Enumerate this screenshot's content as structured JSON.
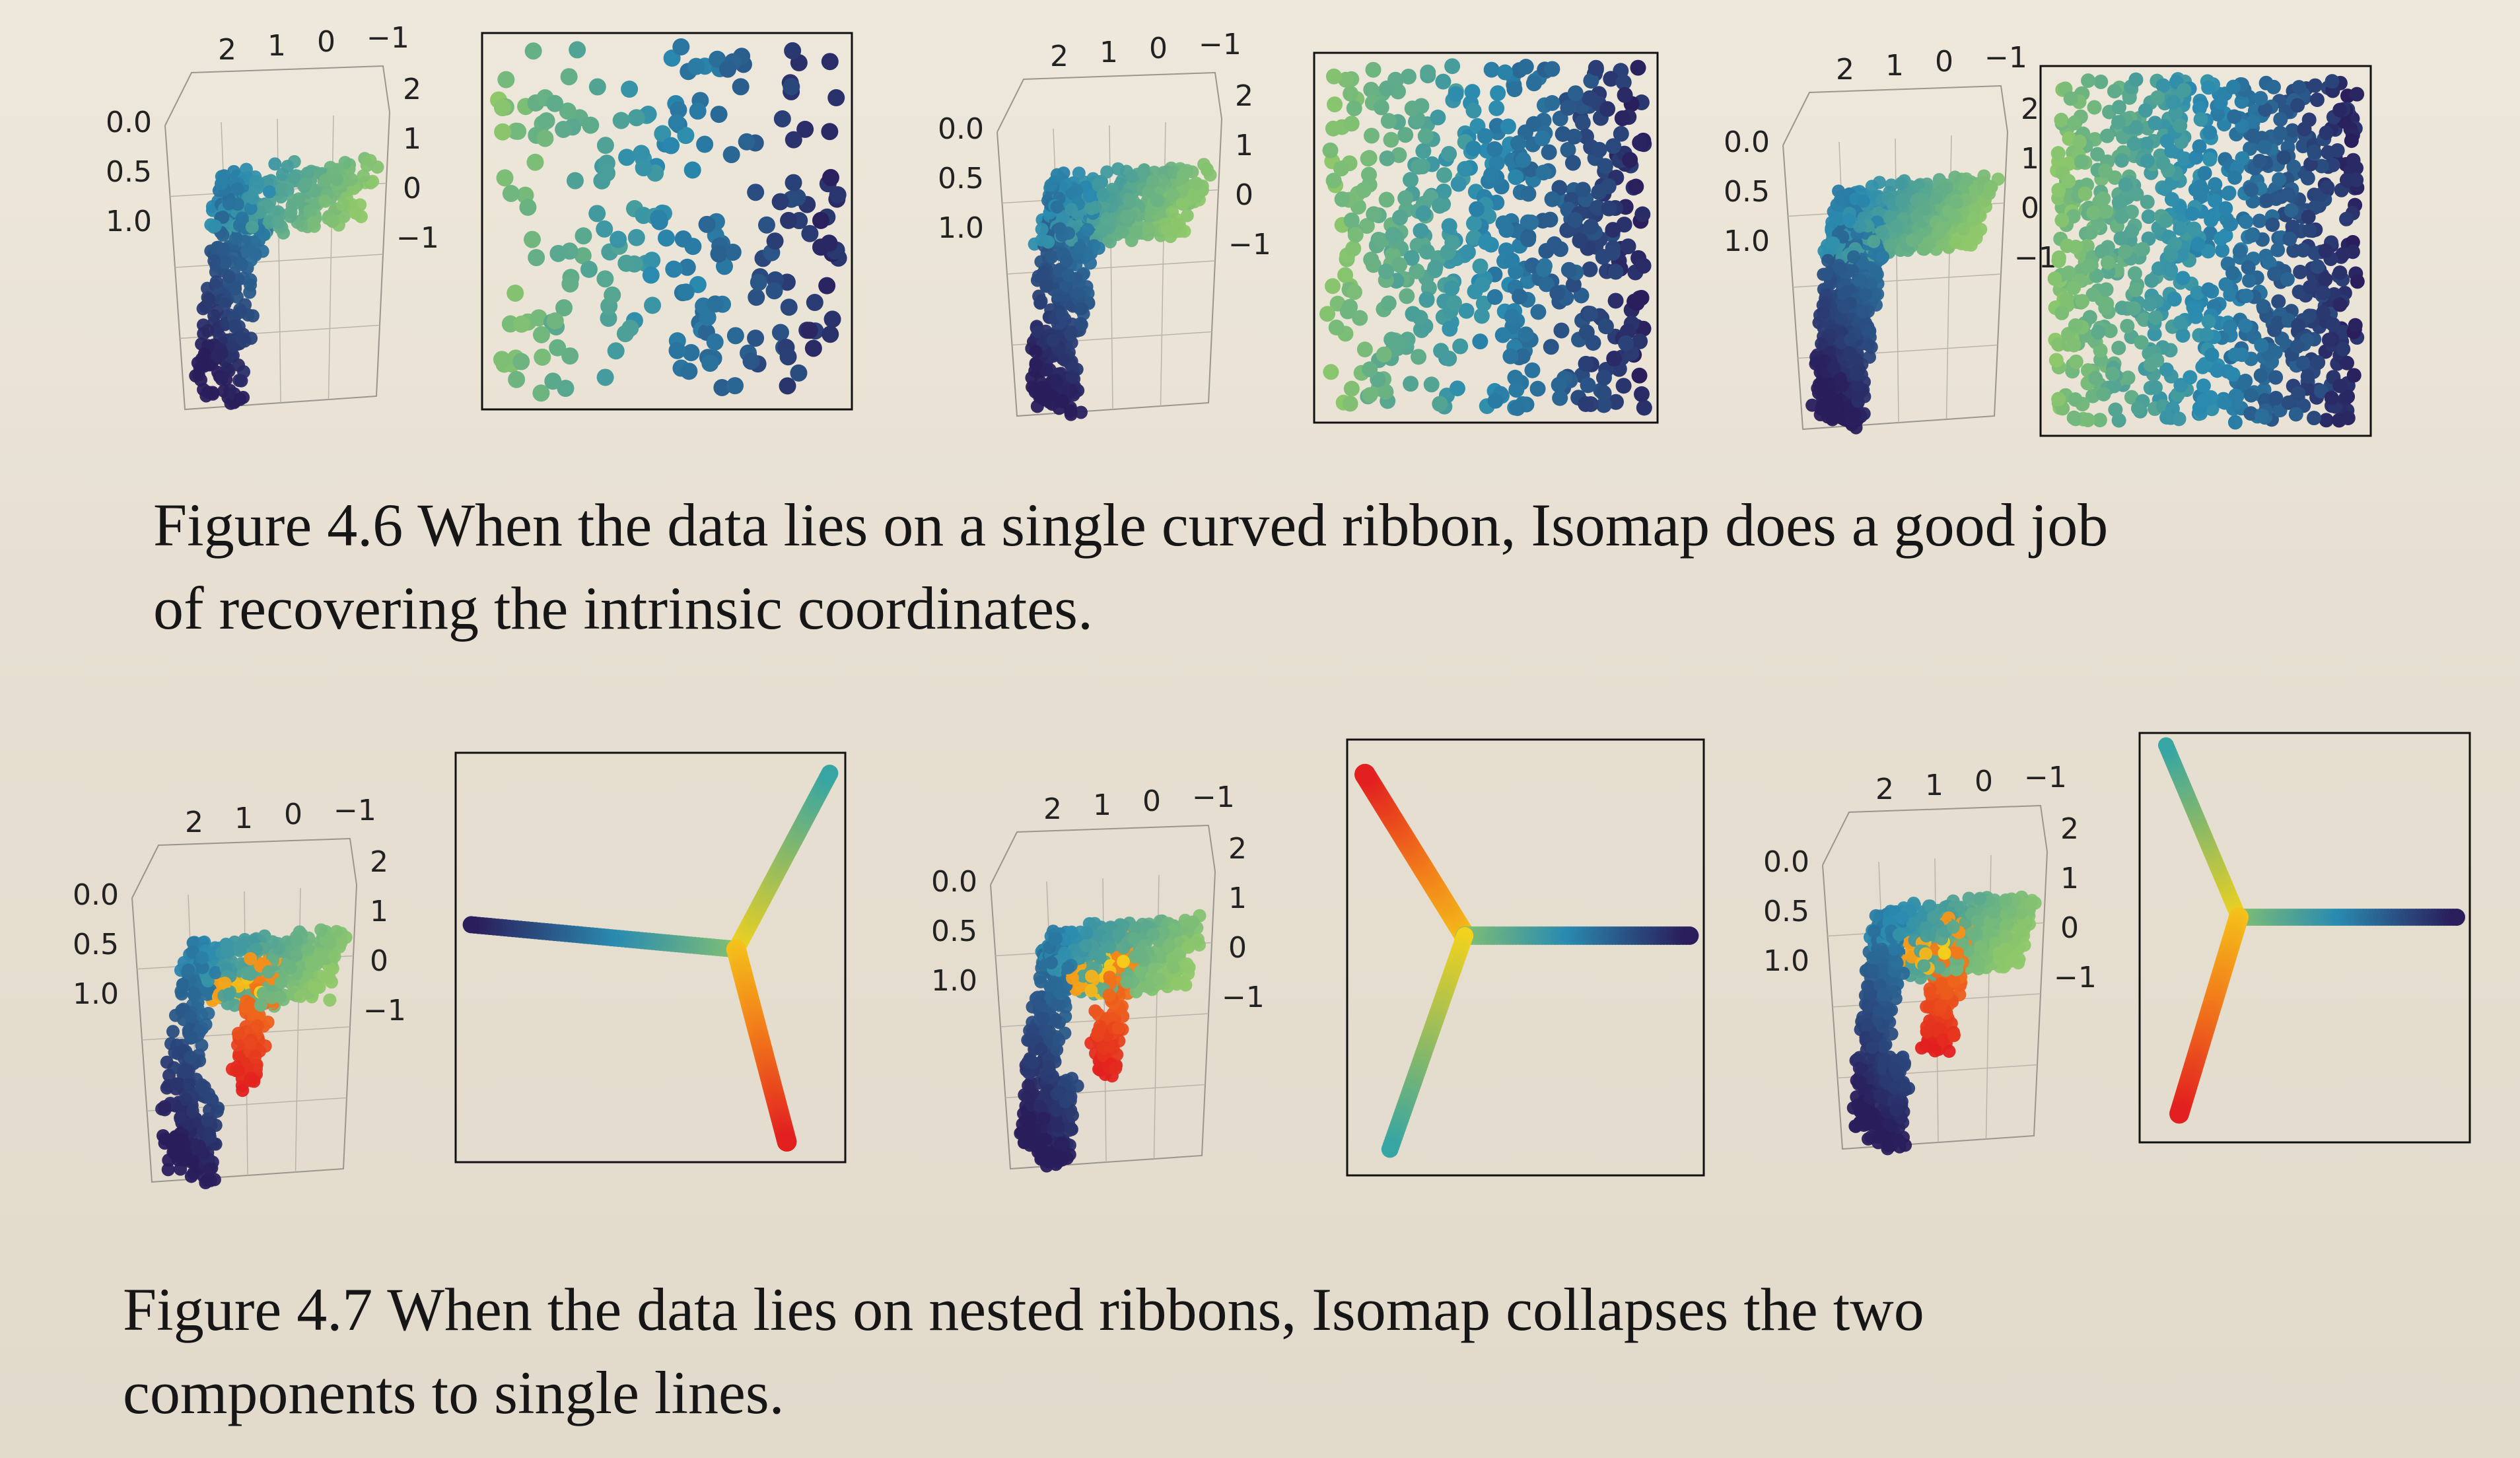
{
  "figure_4_6": {
    "caption": {
      "number": "Figure 4.6",
      "line1": "When the data lies on a single curved ribbon, Isomap does a good job",
      "line2": "of recovering the intrinsic coordinates."
    }
  },
  "figure_4_7": {
    "caption": {
      "number": "Figure 4.7",
      "line1": "When the data lies on nested ribbons, Isomap collapses the two",
      "line2": "components to single lines."
    }
  },
  "axis_3d": {
    "top_ticks": [
      "2",
      "1",
      "0",
      "−1"
    ],
    "left_ticks": [
      "0.0",
      "0.5",
      "1.0"
    ],
    "right_ticks": [
      "2",
      "1",
      "0",
      "−1"
    ]
  },
  "colors": {
    "viridis_dark": "#2a1e5c",
    "viridis_mid": "#2a8bb0",
    "viridis_light": "#8ec86a",
    "red": "#e22020",
    "orange": "#f27d1a",
    "yellow": "#f5d31a",
    "teal": "#37a5a3"
  },
  "chart_data": [
    {
      "type": "scatter",
      "figure": "4.6",
      "panel": 1,
      "view": "3d-ribbon",
      "xlabel": "",
      "ylabel": ""
    },
    {
      "type": "scatter",
      "figure": "4.6",
      "panel": 2,
      "view": "2d-embedding-sparse",
      "xlabel": "",
      "ylabel": ""
    },
    {
      "type": "scatter",
      "figure": "4.6",
      "panel": 3,
      "view": "3d-ribbon",
      "xlabel": "",
      "ylabel": ""
    },
    {
      "type": "scatter",
      "figure": "4.6",
      "panel": 4,
      "view": "2d-embedding-medium",
      "xlabel": "",
      "ylabel": ""
    },
    {
      "type": "scatter",
      "figure": "4.6",
      "panel": 5,
      "view": "3d-ribbon",
      "xlabel": "",
      "ylabel": ""
    },
    {
      "type": "scatter",
      "figure": "4.6",
      "panel": 6,
      "view": "2d-embedding-dense",
      "xlabel": "",
      "ylabel": ""
    },
    {
      "type": "scatter",
      "figure": "4.7",
      "panel": 1,
      "view": "3d-nested-ribbons",
      "xlabel": "",
      "ylabel": ""
    },
    {
      "type": "scatter",
      "figure": "4.7",
      "panel": 2,
      "view": "2d-three-arms",
      "xlabel": "",
      "ylabel": ""
    },
    {
      "type": "scatter",
      "figure": "4.7",
      "panel": 3,
      "view": "3d-nested-ribbons",
      "xlabel": "",
      "ylabel": ""
    },
    {
      "type": "scatter",
      "figure": "4.7",
      "panel": 4,
      "view": "2d-three-arms",
      "xlabel": "",
      "ylabel": ""
    },
    {
      "type": "scatter",
      "figure": "4.7",
      "panel": 5,
      "view": "3d-nested-ribbons",
      "xlabel": "",
      "ylabel": ""
    },
    {
      "type": "scatter",
      "figure": "4.7",
      "panel": 6,
      "view": "2d-three-arms",
      "xlabel": "",
      "ylabel": ""
    }
  ]
}
